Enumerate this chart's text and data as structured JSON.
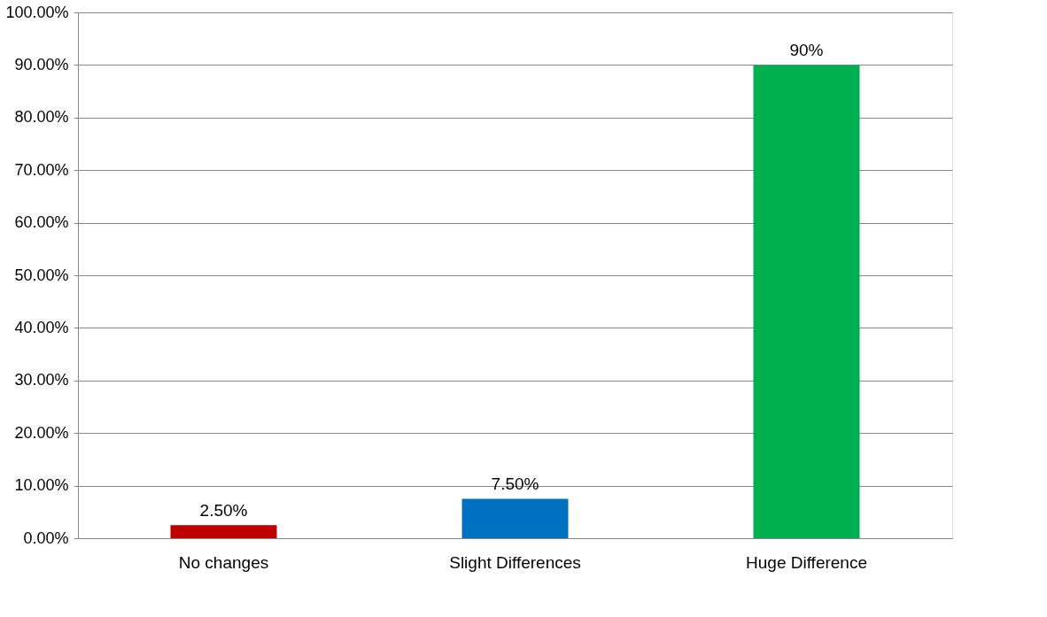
{
  "chart_data": {
    "type": "bar",
    "categories": [
      "No changes",
      "Slight Differences",
      "Huge Difference"
    ],
    "values": [
      2.5,
      7.5,
      90
    ],
    "colors": [
      "#c00000",
      "#0070c0",
      "#00b050"
    ],
    "value_labels": [
      "2.50%",
      "7.50%",
      "90%"
    ],
    "ylim": [
      0,
      100
    ],
    "yticks": [
      {
        "value": 0,
        "label": "0.00%"
      },
      {
        "value": 10,
        "label": "10.00%"
      },
      {
        "value": 20,
        "label": "20.00%"
      },
      {
        "value": 30,
        "label": "30.00%"
      },
      {
        "value": 40,
        "label": "40.00%"
      },
      {
        "value": 50,
        "label": "50.00%"
      },
      {
        "value": 60,
        "label": "60.00%"
      },
      {
        "value": 70,
        "label": "70.00%"
      },
      {
        "value": 80,
        "label": "80.00%"
      },
      {
        "value": 90,
        "label": "90.00%"
      },
      {
        "value": 100,
        "label": "100.00%"
      }
    ],
    "grid": "y"
  }
}
